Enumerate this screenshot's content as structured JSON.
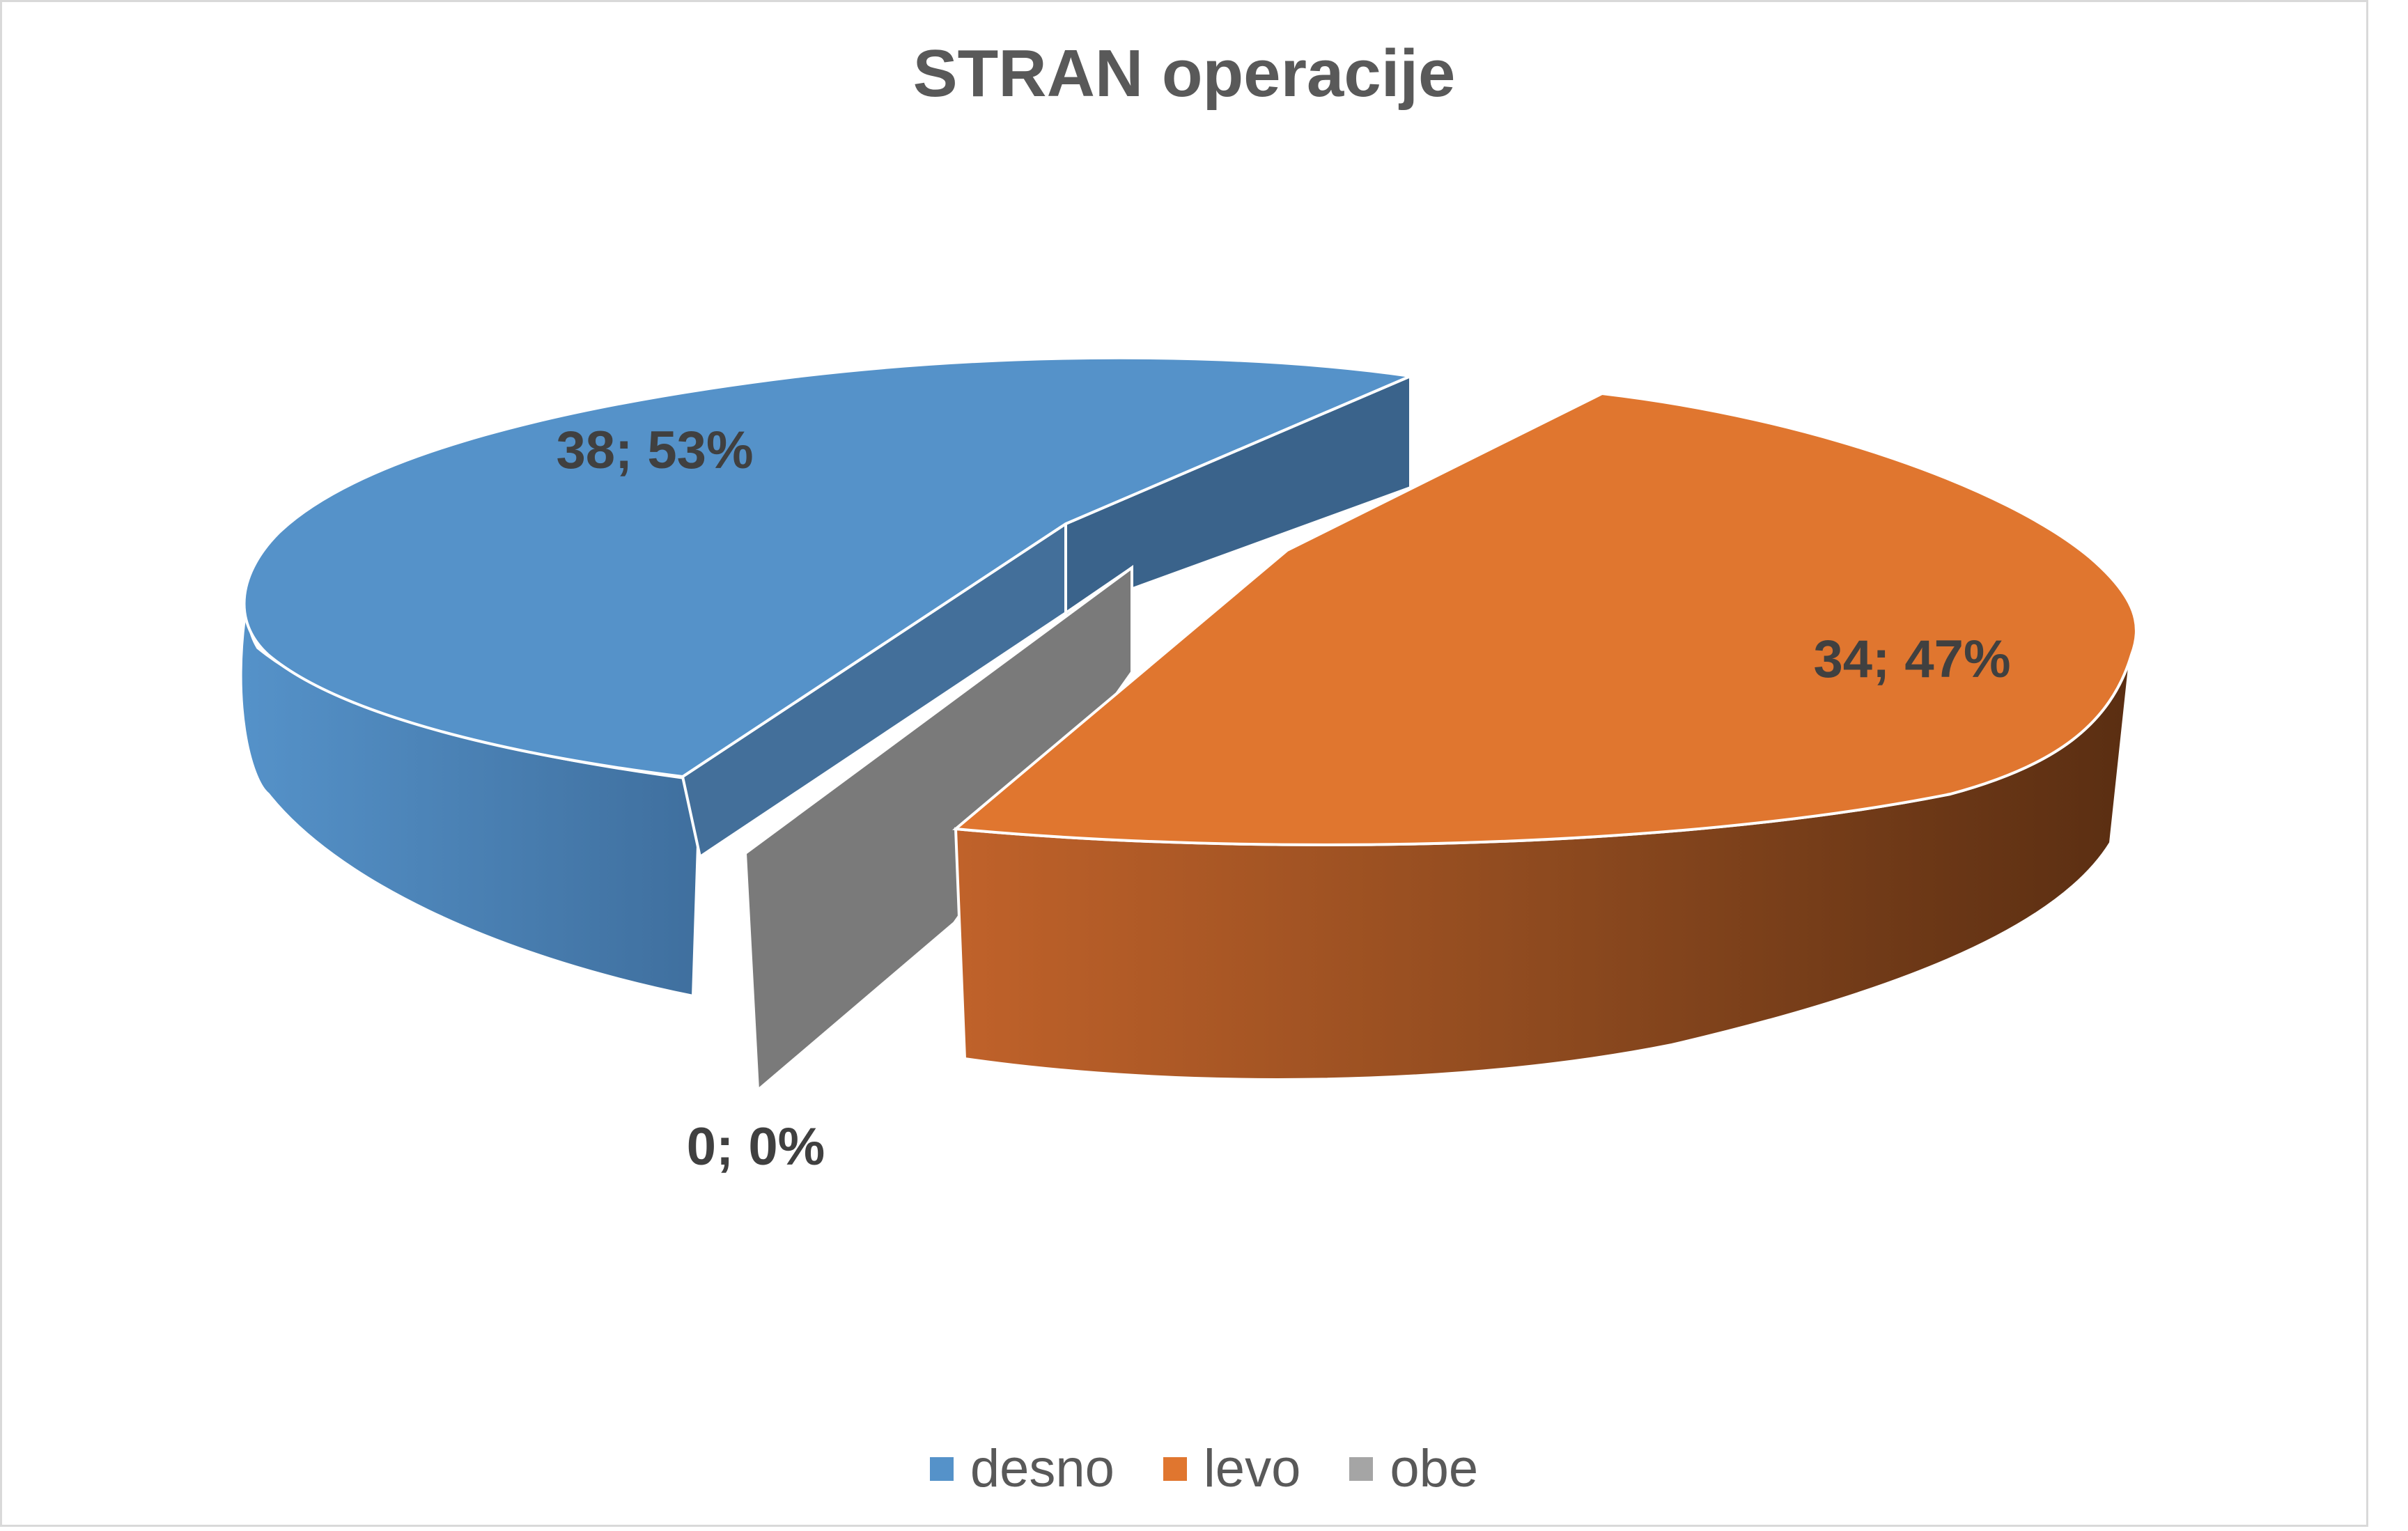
{
  "chart_data": {
    "type": "pie",
    "title": "STRAN operacije",
    "categories": [
      "desno",
      "levo",
      "obe"
    ],
    "values": [
      38,
      34,
      0
    ],
    "percentages": [
      "53%",
      "47%",
      "0%"
    ],
    "data_labels": [
      "38; 53%",
      "34; 47%",
      "0; 0%"
    ],
    "legend_position": "bottom",
    "colors": [
      "#5592C9",
      "#E0762F",
      "#7A7A7A"
    ],
    "style": "3d-exploded"
  }
}
